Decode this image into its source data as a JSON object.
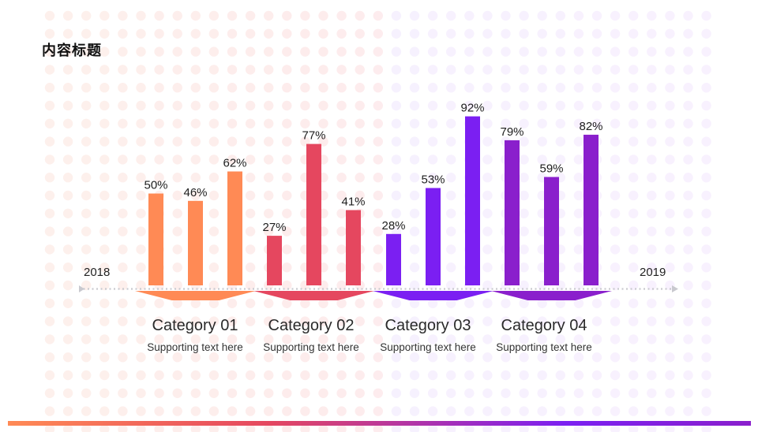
{
  "page": {
    "title": "内容标题"
  },
  "timeline": {
    "start_label": "2018",
    "end_label": "2019"
  },
  "colors": {
    "orange": "#FF8A55",
    "red": "#E5475F",
    "violet": "#7B1FF2",
    "purple": "#8A1FCC"
  },
  "chart_data": {
    "type": "bar",
    "unit": "%",
    "ylim": [
      0,
      100
    ],
    "groups": [
      {
        "category": "Category 01",
        "subtitle": "Supporting text here",
        "color": "#FF8A55",
        "values": [
          50,
          46,
          62
        ]
      },
      {
        "category": "Category 02",
        "subtitle": "Supporting text here",
        "color": "#E5475F",
        "values": [
          27,
          77,
          41
        ]
      },
      {
        "category": "Category 03",
        "subtitle": "Supporting text here",
        "color": "#7B1FF2",
        "values": [
          28,
          53,
          92
        ]
      },
      {
        "category": "Category 04",
        "subtitle": "Supporting text here",
        "color": "#8A1FCC",
        "values": [
          79,
          59,
          82
        ]
      }
    ]
  }
}
